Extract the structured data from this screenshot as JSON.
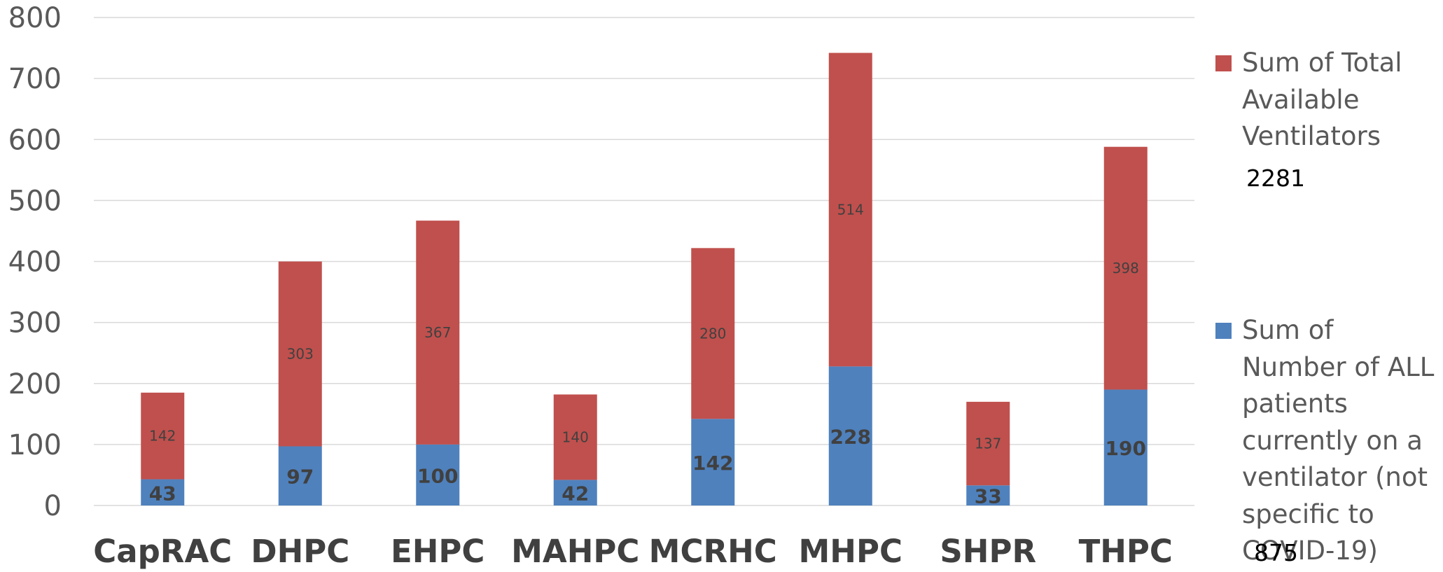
{
  "chart_data": {
    "type": "bar",
    "stacked": true,
    "categories": [
      "CapRAC",
      "DHPC",
      "EHPC",
      "MAHPC",
      "MCRHC",
      "MHPC",
      "SHPR",
      "THPC"
    ],
    "series": [
      {
        "name": "Sum of Number of ALL patients currently on a ventilator (not specific to COVID-19)",
        "color": "#4f81bd",
        "values": [
          43,
          97,
          100,
          42,
          142,
          228,
          33,
          190
        ],
        "total": "875"
      },
      {
        "name": "Sum of Total Available Ventilators",
        "color": "#c0504d",
        "values": [
          142,
          303,
          367,
          140,
          280,
          514,
          137,
          398
        ],
        "total": "2281"
      }
    ],
    "yticks": [
      0,
      100,
      200,
      300,
      400,
      500,
      600,
      700,
      800
    ],
    "ylim": [
      0,
      800
    ],
    "grid": true,
    "legend_position": "right"
  }
}
